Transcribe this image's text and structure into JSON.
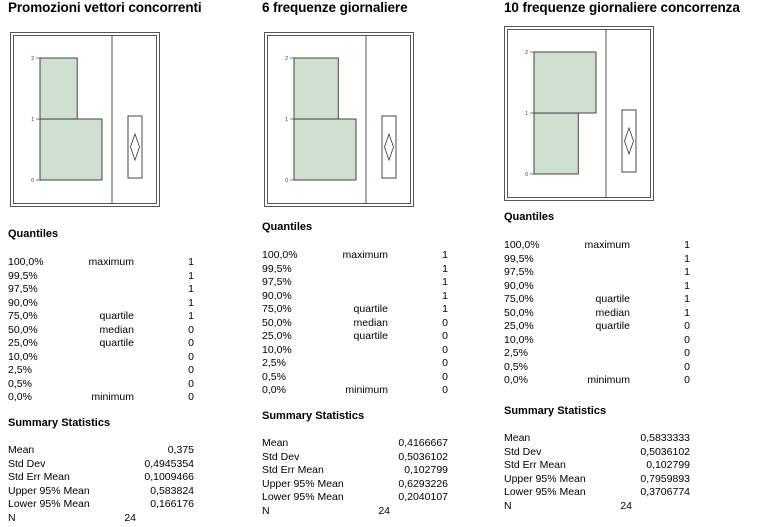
{
  "panels": [
    {
      "title": "Promozioni vettori concorrenti",
      "quantiles_label": "Quantiles",
      "quantiles": [
        {
          "pct": "100,0%",
          "label": "maximum",
          "value": "1"
        },
        {
          "pct": "99,5%",
          "label": "",
          "value": "1"
        },
        {
          "pct": "97,5%",
          "label": "",
          "value": "1"
        },
        {
          "pct": "90,0%",
          "label": "",
          "value": "1"
        },
        {
          "pct": "75,0%",
          "label": "quartile",
          "value": "1"
        },
        {
          "pct": "50,0%",
          "label": "median",
          "value": "0"
        },
        {
          "pct": "25,0%",
          "label": "quartile",
          "value": "0"
        },
        {
          "pct": "10,0%",
          "label": "",
          "value": "0"
        },
        {
          "pct": "2,5%",
          "label": "",
          "value": "0"
        },
        {
          "pct": "0,5%",
          "label": "",
          "value": "0"
        },
        {
          "pct": "0,0%",
          "label": "minimum",
          "value": "0"
        }
      ],
      "summary_label": "Summary Statistics",
      "summary": [
        {
          "label": "Mean",
          "value": "0,375"
        },
        {
          "label": "Std Dev",
          "value": "0,4945354"
        },
        {
          "label": "Std Err Mean",
          "value": "0,1009466"
        },
        {
          "label": "Upper 95% Mean",
          "value": "0,583824"
        },
        {
          "label": "Lower 95% Mean",
          "value": "0,166176"
        },
        {
          "label": "N",
          "value": "24"
        }
      ]
    },
    {
      "title": "6 frequenze giornaliere",
      "quantiles_label": "Quantiles",
      "quantiles": [
        {
          "pct": "100,0%",
          "label": "maximum",
          "value": "1"
        },
        {
          "pct": "99,5%",
          "label": "",
          "value": "1"
        },
        {
          "pct": "97,5%",
          "label": "",
          "value": "1"
        },
        {
          "pct": "90,0%",
          "label": "",
          "value": "1"
        },
        {
          "pct": "75,0%",
          "label": "quartile",
          "value": "1"
        },
        {
          "pct": "50,0%",
          "label": "median",
          "value": "0"
        },
        {
          "pct": "25,0%",
          "label": "quartile",
          "value": "0"
        },
        {
          "pct": "10,0%",
          "label": "",
          "value": "0"
        },
        {
          "pct": "2,5%",
          "label": "",
          "value": "0"
        },
        {
          "pct": "0,5%",
          "label": "",
          "value": "0"
        },
        {
          "pct": "0,0%",
          "label": "minimum",
          "value": "0"
        }
      ],
      "summary_label": "Summary Statistics",
      "summary": [
        {
          "label": "Mean",
          "value": "0,4166667"
        },
        {
          "label": "Std Dev",
          "value": "0,5036102"
        },
        {
          "label": "Std Err Mean",
          "value": "0,102799"
        },
        {
          "label": "Upper 95% Mean",
          "value": "0,6293226"
        },
        {
          "label": "Lower 95% Mean",
          "value": "0,2040107"
        },
        {
          "label": "N",
          "value": "24"
        }
      ]
    },
    {
      "title": "10 frequenze giornaliere concorrenza",
      "quantiles_label": "Quantiles",
      "quantiles": [
        {
          "pct": "100,0%",
          "label": "maximum",
          "value": "1"
        },
        {
          "pct": "99,5%",
          "label": "",
          "value": "1"
        },
        {
          "pct": "97,5%",
          "label": "",
          "value": "1"
        },
        {
          "pct": "90,0%",
          "label": "",
          "value": "1"
        },
        {
          "pct": "75,0%",
          "label": "quartile",
          "value": "1"
        },
        {
          "pct": "50,0%",
          "label": "median",
          "value": "1"
        },
        {
          "pct": "25,0%",
          "label": "quartile",
          "value": "0"
        },
        {
          "pct": "10,0%",
          "label": "",
          "value": "0"
        },
        {
          "pct": "2,5%",
          "label": "",
          "value": "0"
        },
        {
          "pct": "0,5%",
          "label": "",
          "value": "0"
        },
        {
          "pct": "0,0%",
          "label": "minimum",
          "value": "0"
        }
      ],
      "summary_label": "Summary Statistics",
      "summary": [
        {
          "label": "Mean",
          "value": "0,5833333"
        },
        {
          "label": "Std Dev",
          "value": "0,5036102"
        },
        {
          "label": "Std Err Mean",
          "value": "0,102799"
        },
        {
          "label": "Upper 95% Mean",
          "value": "0,7959893"
        },
        {
          "label": "Lower 95% Mean",
          "value": "0,3706774"
        },
        {
          "label": "N",
          "value": "24"
        }
      ]
    }
  ],
  "chart_data": [
    {
      "type": "bar",
      "orientation": "horizontal",
      "ylabels": [
        "0",
        "1",
        "2"
      ],
      "bins": [
        {
          "from": 0,
          "to": 1,
          "count": 15
        },
        {
          "from": 1,
          "to": 2,
          "count": 9
        }
      ],
      "bar_color": "#cfe0d0"
    },
    {
      "type": "bar",
      "orientation": "horizontal",
      "ylabels": [
        "0",
        "1",
        "2"
      ],
      "bins": [
        {
          "from": 0,
          "to": 1,
          "count": 14
        },
        {
          "from": 1,
          "to": 2,
          "count": 10
        }
      ],
      "bar_color": "#cfe0d0"
    },
    {
      "type": "bar",
      "orientation": "horizontal",
      "ylabels": [
        "0",
        "1",
        "2"
      ],
      "bins": [
        {
          "from": 0,
          "to": 1,
          "count": 10
        },
        {
          "from": 1,
          "to": 2,
          "count": 14
        }
      ],
      "bar_color": "#cfe0d0"
    }
  ]
}
